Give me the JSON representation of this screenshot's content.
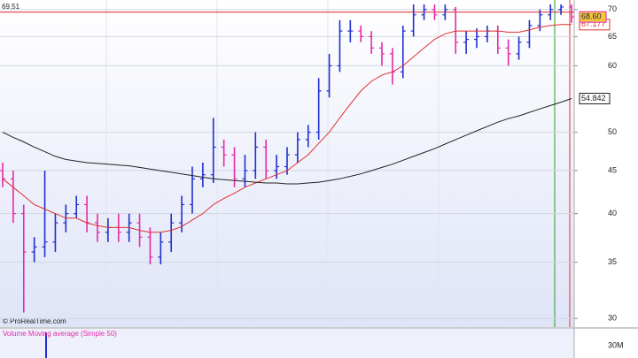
{
  "chart_data": [
    {
      "type": "ohlc",
      "source": "© ProRealTime.com",
      "log_scale": true,
      "ylim": [
        29.3,
        71
      ],
      "yticks": [
        30,
        35,
        40,
        45,
        50,
        60,
        65,
        70
      ],
      "grid": true,
      "hline": {
        "value": 69.51,
        "color": "#d62728"
      },
      "up_color": "#1f2fd0",
      "down_color": "#e62aa8",
      "open": [
        45,
        44,
        40,
        36,
        36.5,
        37,
        39,
        40,
        41,
        39,
        38,
        38.5,
        38,
        39,
        37.5,
        35.5,
        37,
        39,
        41,
        44,
        44.5,
        48,
        47,
        44,
        45,
        48,
        45,
        45.5,
        47,
        49,
        50,
        56,
        60,
        66,
        66,
        65,
        63,
        62,
        59,
        66,
        69,
        70,
        69,
        70,
        64,
        64.5,
        65,
        66,
        63,
        62,
        64,
        67,
        69,
        70,
        70.5
      ],
      "high": [
        46,
        45,
        41,
        37.5,
        45,
        40,
        41,
        42,
        42,
        40,
        39.5,
        40,
        40,
        40,
        38.5,
        38,
        40,
        42,
        45.5,
        46,
        52,
        49,
        48,
        47,
        50,
        49,
        47,
        48,
        50,
        51,
        58,
        62,
        68,
        68,
        67,
        66,
        64,
        63,
        67,
        71,
        71,
        71,
        71,
        70.5,
        66,
        66.5,
        67,
        67,
        64.5,
        65,
        68,
        70,
        71,
        71,
        71
      ],
      "low": [
        43,
        39,
        30.5,
        35,
        35.5,
        36,
        38,
        39.5,
        38,
        37,
        37,
        37,
        37,
        36.5,
        34.8,
        34.8,
        36,
        38,
        40,
        43,
        43.5,
        45.5,
        43,
        43,
        44,
        44,
        44,
        44.5,
        46,
        48,
        49,
        55,
        59,
        64,
        64,
        62,
        60,
        57,
        58,
        65,
        68,
        68,
        68,
        62,
        62,
        63,
        64,
        62,
        60,
        61,
        63,
        66,
        68,
        69,
        67.5
      ],
      "close": [
        44,
        40,
        36,
        36.5,
        37,
        39,
        40,
        41,
        39,
        38,
        38.5,
        38,
        39,
        37.5,
        35.5,
        37,
        39,
        41,
        44,
        44.5,
        48,
        47,
        44,
        45,
        48,
        45,
        45.5,
        47,
        49,
        50,
        56,
        60,
        66,
        66,
        65,
        63,
        62,
        59,
        66,
        69,
        70,
        69,
        70,
        64,
        64.5,
        65,
        66,
        63,
        62,
        64,
        67,
        69,
        70,
        70.5,
        68.6
      ],
      "close_label": "68.60",
      "lines": [
        {
          "color": "#e03030",
          "last_label": "67.177",
          "values": [
            44,
            43,
            42,
            41,
            40.5,
            40,
            39.5,
            39.5,
            39,
            38.7,
            38.5,
            38.5,
            38.5,
            38.2,
            38,
            38,
            38.2,
            38.6,
            39.3,
            40,
            41,
            41.7,
            42.3,
            43,
            43.5,
            44,
            44.5,
            45,
            46,
            47,
            48.5,
            50,
            52,
            54,
            56,
            57.5,
            58.5,
            59,
            60,
            61.5,
            63,
            64.5,
            65.5,
            66,
            66,
            66,
            66,
            66,
            65.8,
            65.8,
            66.2,
            66.7,
            67,
            67.2,
            67.177
          ]
        },
        {
          "color": "#222222",
          "last_label": "54.842",
          "values": [
            50,
            49.3,
            48.7,
            48,
            47.4,
            46.8,
            46.4,
            46.2,
            46,
            45.9,
            45.8,
            45.7,
            45.6,
            45.4,
            45.2,
            45,
            44.8,
            44.6,
            44.4,
            44.2,
            44,
            43.9,
            43.8,
            43.7,
            43.6,
            43.5,
            43.5,
            43.4,
            43.4,
            43.5,
            43.6,
            43.8,
            44,
            44.3,
            44.6,
            45,
            45.4,
            45.8,
            46.3,
            46.8,
            47.3,
            47.8,
            48.4,
            49,
            49.6,
            50.2,
            50.8,
            51.4,
            51.9,
            52.3,
            52.8,
            53.3,
            53.8,
            54.3,
            54.842
          ]
        }
      ]
    },
    {
      "type": "volume",
      "title": "Volume Moving average (Simple 50)",
      "yticks": [
        {
          "value": 30000000,
          "label": "30M"
        }
      ]
    }
  ]
}
